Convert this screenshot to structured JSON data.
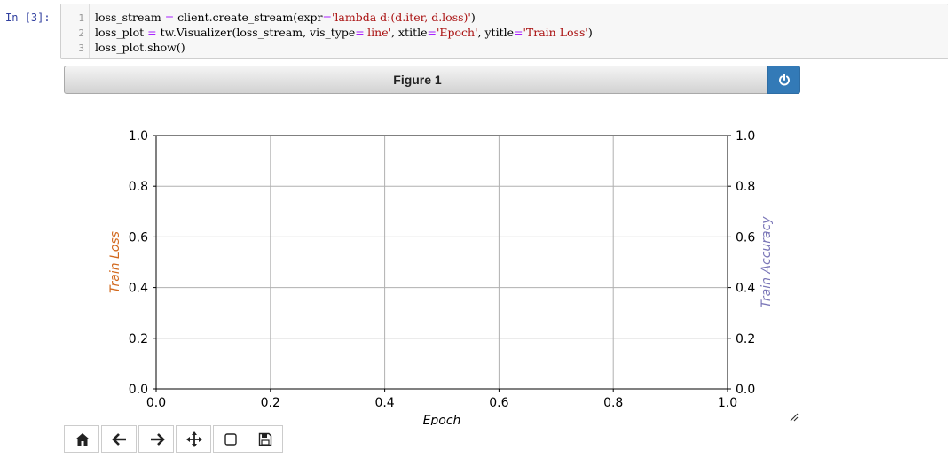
{
  "cell": {
    "prompt": "In  [3]:",
    "lines": [
      {
        "num": "1",
        "a": "loss_stream ",
        "b": "=",
        "c": " client.create_stream(expr",
        "d": "=",
        "e": "'lambda d:(d.iter, d.loss)'",
        "f": ")"
      },
      {
        "num": "2",
        "a": "loss_plot ",
        "b": "=",
        "c": " tw.Visualizer(loss_stream, vis_type",
        "d": "=",
        "e": "'line'",
        "f": ", xtitle",
        "g": "=",
        "h": "'Epoch'",
        "i": ", ytitle",
        "j": "=",
        "k": "'Train Loss'",
        "l": ")"
      },
      {
        "num": "3",
        "a": "loss_plot.show()"
      }
    ]
  },
  "figure": {
    "title": "Figure 1"
  },
  "chart_data": {
    "type": "line",
    "title": "",
    "xlabel": "Epoch",
    "ylabel": "Train Loss",
    "ylabel_right": "Train Accuracy",
    "xlim": [
      0.0,
      1.0
    ],
    "ylim": [
      0.0,
      1.0
    ],
    "ylim_right": [
      0.0,
      1.0
    ],
    "xticks": [
      "0.0",
      "0.2",
      "0.4",
      "0.6",
      "0.8",
      "1.0"
    ],
    "yticks": [
      "0.0",
      "0.2",
      "0.4",
      "0.6",
      "0.8",
      "1.0"
    ],
    "yticks_right": [
      "0.0",
      "0.2",
      "0.4",
      "0.6",
      "0.8",
      "1.0"
    ],
    "grid": true,
    "series": [],
    "colors": {
      "left_label": "#d2691e",
      "right_label": "#7b77b8"
    }
  },
  "toolbar": {
    "icons": [
      "home-icon",
      "arrow-left-icon",
      "arrow-right-icon",
      "move-icon",
      "square-icon",
      "save-icon"
    ]
  }
}
